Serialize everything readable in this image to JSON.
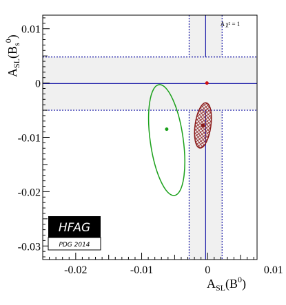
{
  "chart_data": {
    "type": "scatter",
    "title": "",
    "xlabel": {
      "main": "A",
      "sub": "SL",
      "arg": "(B",
      "sup": "0",
      "close": ")"
    },
    "ylabel": {
      "main": "A",
      "sub": "SL",
      "arg": "(B",
      "argsub": "s",
      "sup": "0",
      "close": ")"
    },
    "xlim": [
      -0.025,
      0.0075
    ],
    "ylim": [
      -0.0325,
      0.0125
    ],
    "grid": false,
    "x_ticks": [
      -0.02,
      -0.01,
      0,
      0.01
    ],
    "x_tick_labels": [
      "-0.02",
      "-0.01",
      "0",
      "0.01"
    ],
    "y_ticks": [
      0.01,
      0,
      -0.01,
      -0.02,
      -0.03
    ],
    "y_tick_labels": [
      "0.01",
      "0",
      "-0.01",
      "-0.02",
      "-0.03"
    ],
    "annotation": "Δ χ² = 1",
    "bands": [
      {
        "orientation": "vertical",
        "center": -0.0003,
        "halfwidth": 0.0025,
        "fill": "#f0f0f0",
        "edge": "#1a1aa8"
      },
      {
        "orientation": "horizontal",
        "center": -0.0001,
        "halfwidth": 0.0049,
        "fill": "#f0f0f0",
        "edge": "#1a1aa8"
      }
    ],
    "ellipses": [
      {
        "name": "green",
        "cx": -0.0062,
        "cy": -0.0105,
        "rx": 0.0025,
        "ry": 0.0103,
        "tilt_deg": -8,
        "color": "#1aa01a"
      },
      {
        "name": "red",
        "cx": -0.0007,
        "cy": -0.0078,
        "rx": 0.0012,
        "ry": 0.0042,
        "tilt_deg": 8,
        "color": "#8b1a1a",
        "hatch": true
      }
    ],
    "points": [
      {
        "name": "green-point",
        "x": -0.0062,
        "y": -0.0085,
        "color": "#1aa01a",
        "shape": "circle"
      },
      {
        "name": "red-point",
        "x": -0.0007,
        "y": -0.0078,
        "color": "#8b1a1a",
        "shape": "square"
      },
      {
        "name": "sm-point",
        "x": -0.0001,
        "y": 0.0,
        "color": "#d01010",
        "shape": "circle"
      }
    ]
  },
  "logo": {
    "main": "HFAG",
    "sub": "PDG 2014"
  }
}
